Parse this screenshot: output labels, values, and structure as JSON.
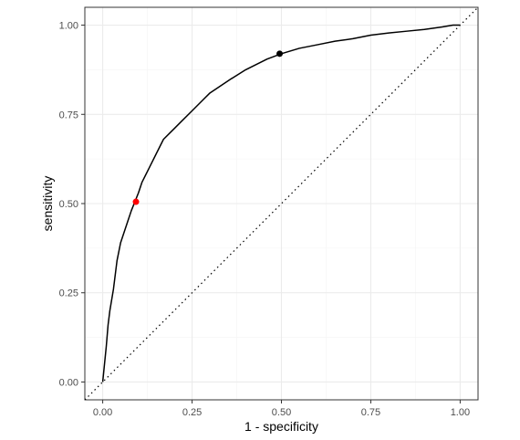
{
  "chart_data": {
    "type": "line",
    "xlabel": "1 - specificity",
    "ylabel": "sensitivity",
    "xlim": [
      -0.05,
      1.05
    ],
    "ylim": [
      -0.05,
      1.05
    ],
    "x_ticks": [
      {
        "value": 0,
        "label": "0.00"
      },
      {
        "value": 0.25,
        "label": "0.25"
      },
      {
        "value": 0.5,
        "label": "0.50"
      },
      {
        "value": 0.75,
        "label": "0.75"
      },
      {
        "value": 1,
        "label": "1.00"
      }
    ],
    "y_ticks": [
      {
        "value": 0,
        "label": "0.00"
      },
      {
        "value": 0.25,
        "label": "0.25"
      },
      {
        "value": 0.5,
        "label": "0.50"
      },
      {
        "value": 0.75,
        "label": "0.75"
      },
      {
        "value": 1,
        "label": "1.00"
      }
    ],
    "grid": true,
    "colors": {
      "curve": "#000000",
      "diagonal": "#000000",
      "highlight_red": "#ff0000",
      "highlight_black": "#000000",
      "grid_major": "#ebebeb",
      "grid_minor": "#f4f4f4",
      "panel_border": "#333333"
    },
    "series": [
      {
        "type": "line",
        "x": [
          0,
          0.01,
          0.015,
          0.02,
          0.03,
          0.04,
          0.05,
          0.06,
          0.07,
          0.08,
          0.09,
          0.1,
          0.11,
          0.12,
          0.13,
          0.15,
          0.17,
          0.19,
          0.2,
          0.22,
          0.25,
          0.28,
          0.3,
          0.33,
          0.36,
          0.4,
          0.43,
          0.46,
          0.5,
          0.55,
          0.6,
          0.65,
          0.7,
          0.75,
          0.8,
          0.85,
          0.9,
          0.95,
          0.98,
          1.0
        ],
        "y": [
          0,
          0.1,
          0.16,
          0.2,
          0.26,
          0.34,
          0.39,
          0.42,
          0.45,
          0.48,
          0.505,
          0.53,
          0.56,
          0.58,
          0.6,
          0.64,
          0.68,
          0.7,
          0.71,
          0.73,
          0.76,
          0.79,
          0.81,
          0.83,
          0.85,
          0.875,
          0.89,
          0.905,
          0.92,
          0.935,
          0.945,
          0.955,
          0.962,
          0.972,
          0.978,
          0.983,
          0.988,
          0.995,
          1.0,
          1.0
        ]
      },
      {
        "type": "diagonal",
        "x": [
          -0.05,
          1.05
        ],
        "y": [
          -0.05,
          1.05
        ]
      },
      {
        "type": "point",
        "color": "red",
        "x": [
          0.093
        ],
        "y": [
          0.505
        ]
      },
      {
        "type": "point",
        "color": "black",
        "x": [
          0.495
        ],
        "y": [
          0.92
        ]
      }
    ]
  }
}
